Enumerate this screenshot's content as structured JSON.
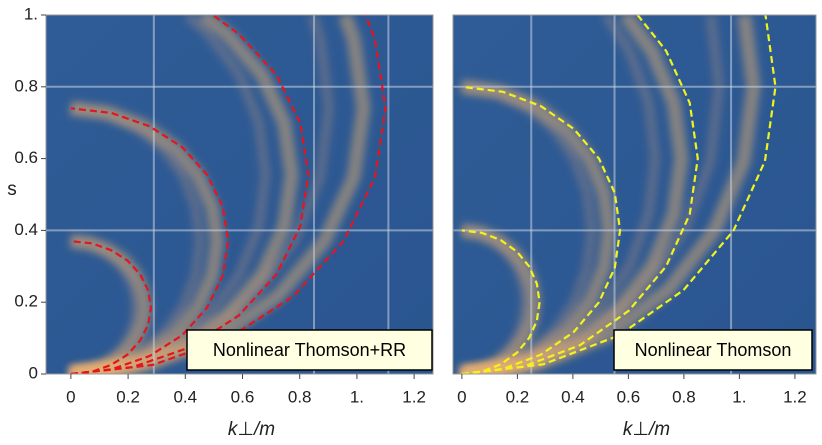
{
  "chart_data": [
    {
      "type": "density",
      "xlabel": "k⊥/m",
      "ylabel": "s",
      "legend_label": "Nonlinear Thomson+RR",
      "xlim": [
        -0.087,
        1.266
      ],
      "ylim": [
        0,
        1
      ],
      "xticks": [
        0,
        0.2,
        0.4,
        0.6,
        0.8,
        {
          "value": 1,
          "label": "1."
        },
        1.2
      ],
      "yticks": [
        0,
        0.2,
        0.4,
        0.6,
        0.8,
        {
          "value": 1,
          "label": "1."
        }
      ],
      "grid_x": [
        0.29,
        0.85,
        1.11
      ],
      "grid_y": [
        0.4,
        0.8
      ],
      "series": [
        {
          "color": "#e3161d",
          "x": [
            0,
            0.073,
            0.14,
            0.198,
            0.242,
            0.27,
            0.28,
            0.27,
            0.242,
            0.198,
            0.14,
            0.073,
            0
          ],
          "values": [
            0,
            0.006,
            0.025,
            0.054,
            0.093,
            0.137,
            0.185,
            0.233,
            0.278,
            0.316,
            0.345,
            0.364,
            0.37
          ]
        },
        {
          "color": "#e3161d",
          "x": [
            0,
            0.142,
            0.275,
            0.389,
            0.476,
            0.531,
            0.55,
            0.531,
            0.476,
            0.389,
            0.275,
            0.142,
            0
          ],
          "values": [
            0,
            0.013,
            0.05,
            0.108,
            0.185,
            0.274,
            0.37,
            0.466,
            0.555,
            0.632,
            0.69,
            0.727,
            0.74
          ]
        },
        {
          "color": "#e3161d",
          "x": [
            0,
            0.215,
            0.415,
            0.587,
            0.719,
            0.802,
            0.83,
            0.802,
            0.719,
            0.587,
            0.496
          ],
          "values": [
            0,
            0.019,
            0.074,
            0.163,
            0.278,
            0.411,
            0.555,
            0.699,
            0.833,
            0.947,
            1
          ]
        },
        {
          "color": "#e3161d",
          "x": [
            0,
            0.285,
            0.55,
            0.778,
            0.953,
            1.063,
            1.1,
            1.063,
            1.03
          ],
          "values": [
            0,
            0.025,
            0.099,
            0.217,
            0.37,
            0.548,
            0.74,
            0.932,
            1
          ]
        }
      ]
    },
    {
      "type": "density",
      "xlabel": "k⊥/m",
      "legend_label": "Nonlinear Thomson",
      "xlim": [
        -0.032,
        1.276
      ],
      "ylim": [
        0,
        1
      ],
      "xticks": [
        0,
        0.2,
        0.4,
        0.6,
        0.8,
        {
          "value": 1,
          "label": "1."
        },
        1.2
      ],
      "grid_x": [
        0.25,
        0.55,
        0.97
      ],
      "grid_y": [
        0.4,
        0.8
      ],
      "series": [
        {
          "color": "#f2f21c",
          "x": [
            0,
            0.073,
            0.14,
            0.198,
            0.242,
            0.27,
            0.28,
            0.27,
            0.242,
            0.198,
            0.14,
            0.073,
            0
          ],
          "values": [
            0,
            0.007,
            0.027,
            0.059,
            0.1,
            0.148,
            0.2,
            0.252,
            0.3,
            0.341,
            0.373,
            0.393,
            0.4
          ]
        },
        {
          "color": "#f2f21c",
          "x": [
            0,
            0.148,
            0.285,
            0.403,
            0.494,
            0.551,
            0.57,
            0.551,
            0.494,
            0.403,
            0.285,
            0.148,
            0
          ],
          "values": [
            0,
            0.014,
            0.054,
            0.117,
            0.2,
            0.296,
            0.4,
            0.504,
            0.6,
            0.683,
            0.746,
            0.786,
            0.8
          ]
        },
        {
          "color": "#f2f21c",
          "x": [
            0,
            0.22,
            0.425,
            0.601,
            0.736,
            0.821,
            0.85,
            0.821,
            0.736,
            0.633
          ],
          "values": [
            0,
            0.02,
            0.08,
            0.176,
            0.3,
            0.445,
            0.6,
            0.755,
            0.9,
            1
          ]
        },
        {
          "color": "#f2f21c",
          "x": [
            0,
            0.293,
            0.565,
            0.799,
            0.979,
            1.092,
            1.13,
            1.094
          ],
          "values": [
            0,
            0.027,
            0.107,
            0.234,
            0.4,
            0.593,
            0.8,
            1
          ]
        }
      ]
    }
  ]
}
